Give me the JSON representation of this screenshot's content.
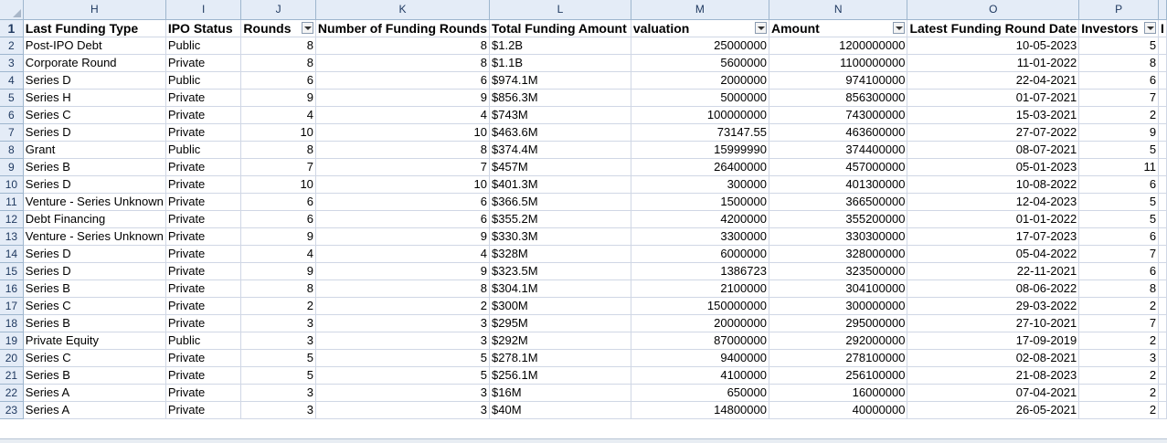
{
  "columns": [
    "H",
    "I",
    "J",
    "K",
    "L",
    "M",
    "N",
    "O",
    "P",
    ""
  ],
  "headers": [
    "Last Funding Type",
    "IPO Status",
    "Rounds",
    "Number of Funding Rounds",
    "Total Funding Amount",
    "valuation",
    "Amount",
    "Latest Funding Round Date",
    "Investors",
    "I"
  ],
  "rows": [
    {
      "n": "2",
      "c": [
        "Post-IPO Debt",
        "Public",
        "8",
        "8",
        "$1.2B",
        "25000000",
        "1200000000",
        "10-05-2023",
        "5"
      ]
    },
    {
      "n": "3",
      "c": [
        "Corporate Round",
        "Private",
        "8",
        "8",
        "$1.1B",
        "5600000",
        "1100000000",
        "11-01-2022",
        "8"
      ]
    },
    {
      "n": "4",
      "c": [
        "Series D",
        "Public",
        "6",
        "6",
        "$974.1M",
        "2000000",
        "974100000",
        "22-04-2021",
        "6"
      ]
    },
    {
      "n": "5",
      "c": [
        "Series H",
        "Private",
        "9",
        "9",
        "$856.3M",
        "5000000",
        "856300000",
        "01-07-2021",
        "7"
      ]
    },
    {
      "n": "6",
      "c": [
        "Series C",
        "Private",
        "4",
        "4",
        "$743M",
        "100000000",
        "743000000",
        "15-03-2021",
        "2"
      ]
    },
    {
      "n": "7",
      "c": [
        "Series D",
        "Private",
        "10",
        "10",
        "$463.6M",
        "73147.55",
        "463600000",
        "27-07-2022",
        "9"
      ]
    },
    {
      "n": "8",
      "c": [
        "Grant",
        "Public",
        "8",
        "8",
        "$374.4M",
        "15999990",
        "374400000",
        "08-07-2021",
        "5"
      ]
    },
    {
      "n": "9",
      "c": [
        "Series B",
        "Private",
        "7",
        "7",
        "$457M",
        "26400000",
        "457000000",
        "05-01-2023",
        "11"
      ]
    },
    {
      "n": "10",
      "c": [
        "Series D",
        "Private",
        "10",
        "10",
        "$401.3M",
        "300000",
        "401300000",
        "10-08-2022",
        "6"
      ]
    },
    {
      "n": "11",
      "c": [
        "Venture - Series Unknown",
        "Private",
        "6",
        "6",
        "$366.5M",
        "1500000",
        "366500000",
        "12-04-2023",
        "5"
      ]
    },
    {
      "n": "12",
      "c": [
        "Debt Financing",
        "Private",
        "6",
        "6",
        "$355.2M",
        "4200000",
        "355200000",
        "01-01-2022",
        "5"
      ]
    },
    {
      "n": "13",
      "c": [
        "Venture - Series Unknown",
        "Private",
        "9",
        "9",
        "$330.3M",
        "3300000",
        "330300000",
        "17-07-2023",
        "6"
      ]
    },
    {
      "n": "14",
      "c": [
        "Series D",
        "Private",
        "4",
        "4",
        "$328M",
        "6000000",
        "328000000",
        "05-04-2022",
        "7"
      ]
    },
    {
      "n": "15",
      "c": [
        "Series D",
        "Private",
        "9",
        "9",
        "$323.5M",
        "1386723",
        "323500000",
        "22-11-2021",
        "6"
      ]
    },
    {
      "n": "16",
      "c": [
        "Series B",
        "Private",
        "8",
        "8",
        "$304.1M",
        "2100000",
        "304100000",
        "08-06-2022",
        "8"
      ]
    },
    {
      "n": "17",
      "c": [
        "Series C",
        "Private",
        "2",
        "2",
        "$300M",
        "150000000",
        "300000000",
        "29-03-2022",
        "2"
      ]
    },
    {
      "n": "18",
      "c": [
        "Series B",
        "Private",
        "3",
        "3",
        "$295M",
        "20000000",
        "295000000",
        "27-10-2021",
        "7"
      ]
    },
    {
      "n": "19",
      "c": [
        "Private Equity",
        "Public",
        "3",
        "3",
        "$292M",
        "87000000",
        "292000000",
        "17-09-2019",
        "2"
      ]
    },
    {
      "n": "20",
      "c": [
        "Series C",
        "Private",
        "5",
        "5",
        "$278.1M",
        "9400000",
        "278100000",
        "02-08-2021",
        "3"
      ]
    },
    {
      "n": "21",
      "c": [
        "Series B",
        "Private",
        "5",
        "5",
        "$256.1M",
        "4100000",
        "256100000",
        "21-08-2023",
        "2"
      ]
    },
    {
      "n": "22",
      "c": [
        "Series A",
        "Private",
        "3",
        "3",
        "$16M",
        "650000",
        "16000000",
        "07-04-2021",
        "2"
      ]
    },
    {
      "n": "23",
      "c": [
        "Series A",
        "Private",
        "3",
        "3",
        "$40M",
        "14800000",
        "40000000",
        "26-05-2021",
        "2"
      ]
    }
  ],
  "header_row_number": "1"
}
